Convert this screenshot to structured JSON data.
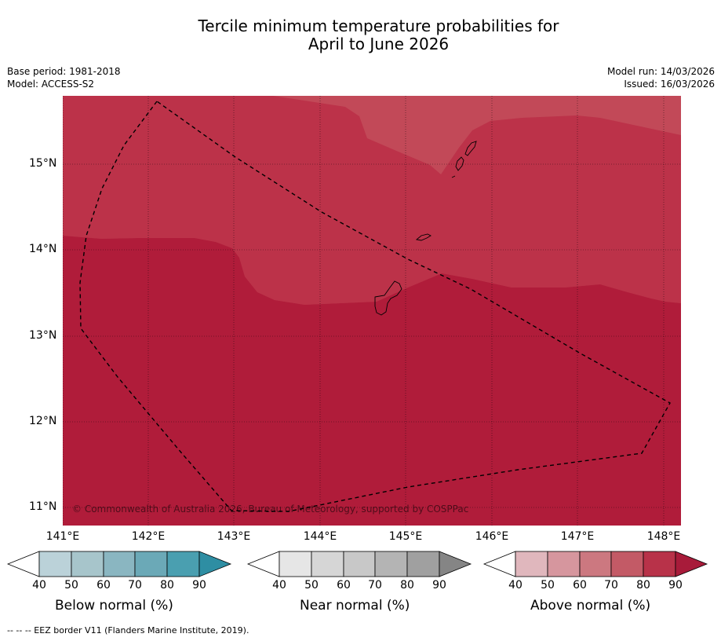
{
  "title": {
    "line1": "Tercile minimum temperature probabilities for",
    "line2": "April to June 2026"
  },
  "meta": {
    "base_period": "Base period: 1981-2018",
    "model": "Model: ACCESS-S2",
    "model_run": "Model run: 14/03/2026",
    "issued": "Issued: 16/03/2026"
  },
  "axes": {
    "lat_labels": [
      "15°N",
      "14°N",
      "13°N",
      "12°N",
      "11°N"
    ],
    "lon_labels": [
      "141°E",
      "142°E",
      "143°E",
      "144°E",
      "145°E",
      "146°E",
      "147°E",
      "148°E"
    ]
  },
  "map": {
    "copyright": "© Commonwealth of Australia 2026, Bureau of Meteorology, supported by COSPPac",
    "zones": [
      {
        "category": "Above normal",
        "probability_range": "70-80",
        "color": "#c24958"
      },
      {
        "category": "Above normal",
        "probability_range": "80-90",
        "color": "#bc3249"
      },
      {
        "category": "Above normal",
        "probability_range": ">90",
        "color": "#b01c3a"
      }
    ]
  },
  "colorbars": [
    {
      "title": "Below normal (%)",
      "ticks": [
        "40",
        "50",
        "60",
        "70",
        "80",
        "90"
      ],
      "colors": [
        "#ffffff",
        "#bbd2d9",
        "#a7c5cb",
        "#8ab6c1",
        "#6ba9b7",
        "#4a9fb0",
        "#2e8ea3"
      ]
    },
    {
      "title": "Near normal (%)",
      "ticks": [
        "40",
        "50",
        "60",
        "70",
        "80",
        "90"
      ],
      "colors": [
        "#ffffff",
        "#e6e6e6",
        "#d6d6d6",
        "#c8c8c8",
        "#b4b4b4",
        "#a0a0a0",
        "#858585"
      ]
    },
    {
      "title": "Above normal (%)",
      "ticks": [
        "40",
        "50",
        "60",
        "70",
        "80",
        "90"
      ],
      "colors": [
        "#ffffff",
        "#e0b7bd",
        "#d6969e",
        "#cc7880",
        "#c35a66",
        "#b83249",
        "#a81b3a"
      ]
    }
  ],
  "footnote": "--  --  -- EEZ border V11 (Flanders Marine Institute, 2019)."
}
